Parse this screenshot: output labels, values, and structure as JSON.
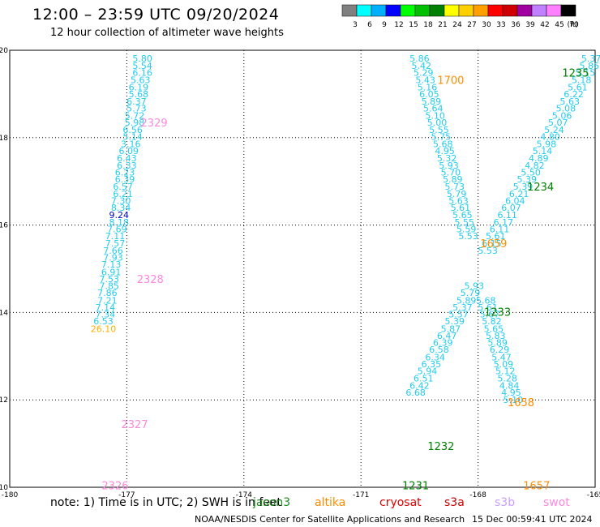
{
  "header": {
    "title": "12:00 – 23:59 UTC 09/20/2024",
    "subtitle": "12 hour collection of altimeter wave heights"
  },
  "footer": {
    "note": "note: 1) Time is in UTC; 2) SWH is in feet",
    "credit": "NOAA/NESDIS Center for Satellite Applications and Research",
    "timestamp": "15 Dec 00:59:41 UTC 2024"
  },
  "satellites": [
    {
      "name": "jason3",
      "color": "#1f8a1f"
    },
    {
      "name": "altika",
      "color": "#ff8c00"
    },
    {
      "name": "cryosat",
      "color": "#e00000"
    },
    {
      "name": "s3a",
      "color": "#cc0000"
    },
    {
      "name": "s3b",
      "color": "#c8a0ff"
    },
    {
      "name": "swot",
      "color": "#ff88dd"
    }
  ],
  "colorbar": {
    "unit": "(ft)",
    "ticks": [
      "3",
      "6",
      "9",
      "12",
      "15",
      "18",
      "21",
      "24",
      "27",
      "30",
      "33",
      "36",
      "39",
      "42",
      "45",
      "70"
    ],
    "colors": [
      "#808080",
      "#00ffff",
      "#00b0ff",
      "#0000ff",
      "#00ff00",
      "#00c000",
      "#008000",
      "#ffff00",
      "#ffd000",
      "#ffa000",
      "#ff0000",
      "#d00000",
      "#a000a0",
      "#c080ff",
      "#ff80ff",
      "#000000"
    ]
  },
  "chart_data": {
    "type": "scatter",
    "xlim": [
      -180,
      -165
    ],
    "ylim": [
      10,
      20
    ],
    "xticks": [
      "-180",
      "-177",
      "-174",
      "-171",
      "-168",
      "-165"
    ],
    "yticks": [
      "10",
      "12",
      "14",
      "16",
      "18",
      "20"
    ],
    "grid": true,
    "series": [
      {
        "color": "cyan",
        "x": [
          -176.6,
          -176.6,
          -176.6,
          -176.65,
          -176.7,
          -176.7,
          -176.75,
          -176.75,
          -176.8,
          -176.8,
          -176.85,
          -176.85,
          -176.9,
          -176.95,
          -177.0,
          -177.0,
          -177.05,
          -177.05,
          -177.1,
          -177.1,
          -177.15,
          -177.15,
          -177.2,
          -177.2,
          -177.25,
          -177.3,
          -177.3,
          -177.35,
          -177.35,
          -177.4,
          -177.4,
          -177.45,
          -177.45,
          -177.5,
          -177.5,
          -177.55,
          -177.55,
          -177.6,
          -177.6
        ],
        "y": [
          19.81,
          19.65,
          19.49,
          19.32,
          19.16,
          19.0,
          18.83,
          18.67,
          18.51,
          18.35,
          18.18,
          18.02,
          17.86,
          17.7,
          17.53,
          17.37,
          17.21,
          17.05,
          16.88,
          16.72,
          16.56,
          16.4,
          16.23,
          16.07,
          15.91,
          15.75,
          15.58,
          15.42,
          15.26,
          15.1,
          14.93,
          14.77,
          14.61,
          14.45,
          14.28,
          14.12,
          13.96,
          13.8,
          13.63
        ],
        "values": [
          "5.80",
          "5.54",
          "6.16",
          "5.63",
          "6.19",
          "5.68",
          "6.37",
          "5.73",
          "5.72",
          "5.98",
          "6.56",
          "5.14",
          "3.16",
          "6.09",
          "6.43",
          "6.33",
          "6.23",
          "6.39",
          "6.57",
          "6.21",
          "7.30",
          "8.34",
          "9.24",
          "8.18",
          "7.69",
          "7.11",
          "7.57",
          "7.66",
          "7.93",
          "7.13",
          "6.91",
          "7.53",
          "7.85",
          "7.86",
          "7.21",
          "7.14",
          "7.34",
          "6.53",
          "26.10"
        ]
      },
      {
        "color": "cyan",
        "x": [
          -169.5,
          -169.45,
          -169.4,
          -169.35,
          -169.3,
          -169.25,
          -169.2,
          -169.15,
          -169.1,
          -169.05,
          -169.0,
          -168.95,
          -168.9,
          -168.85,
          -168.8,
          -168.75,
          -168.7,
          -168.65,
          -168.6,
          -168.55,
          -168.5,
          -168.45,
          -168.4,
          -168.35,
          -168.3,
          -168.25
        ],
        "y": [
          19.81,
          19.65,
          19.49,
          19.32,
          19.16,
          19.0,
          18.83,
          18.67,
          18.51,
          18.35,
          18.18,
          18.02,
          17.86,
          17.7,
          17.53,
          17.37,
          17.21,
          17.05,
          16.88,
          16.72,
          16.56,
          16.4,
          16.23,
          16.07,
          15.91,
          15.75
        ],
        "values": [
          "5.86",
          "5.42",
          "5.29",
          "5.43",
          "5.16",
          "6.05",
          "5.89",
          "5.64",
          "5.10",
          "5.00",
          "5.55",
          "5.75",
          "5.68",
          "4.95",
          "5.32",
          "5.93",
          "5.70",
          "5.89",
          "5.73",
          "5.79",
          "5.63",
          "5.61",
          "5.65",
          "5.55",
          "5.59",
          "5.53"
        ]
      },
      {
        "color": "cyan",
        "x": [
          -165.1,
          -165.15,
          -165.25,
          -165.35,
          -165.45,
          -165.55,
          -165.65,
          -165.75,
          -165.85,
          -165.95,
          -166.05,
          -166.15,
          -166.25,
          -166.35,
          -166.45,
          -166.55,
          -166.65,
          -166.75,
          -166.85,
          -166.95,
          -167.05,
          -167.15,
          -167.25,
          -167.35,
          -167.45,
          -167.55,
          -167.65,
          -167.75
        ],
        "y": [
          19.81,
          19.65,
          19.49,
          19.32,
          19.16,
          19.0,
          18.83,
          18.67,
          18.51,
          18.35,
          18.18,
          18.02,
          17.86,
          17.7,
          17.53,
          17.37,
          17.21,
          17.05,
          16.88,
          16.72,
          16.56,
          16.4,
          16.23,
          16.07,
          15.91,
          15.75,
          15.58,
          15.42
        ],
        "values": [
          "5.37",
          "5.86",
          "5.15",
          "5.18",
          "5.61",
          "6.22",
          "5.63",
          "5.08",
          "5.06",
          "5.07",
          "5.24",
          "4.80",
          "5.98",
          "5.14",
          "4.89",
          "4.82",
          "5.50",
          "5.39",
          "5.39",
          "6.21",
          "6.04",
          "6.07",
          "6.11",
          "6.17",
          "6.11",
          "5.61",
          "6.15",
          "5.53"
        ]
      },
      {
        "color": "cyan",
        "x": [
          -168.1,
          -168.2,
          -168.3,
          -168.4,
          -168.5,
          -168.6,
          -168.7,
          -168.8,
          -168.9,
          -169.0,
          -169.1,
          -169.2,
          -169.3,
          -169.4,
          -169.5,
          -169.6
        ],
        "y": [
          14.61,
          14.45,
          14.28,
          14.12,
          13.96,
          13.8,
          13.63,
          13.47,
          13.31,
          13.15,
          12.98,
          12.82,
          12.66,
          12.5,
          12.33,
          12.17
        ],
        "values": [
          "5.93",
          "5.79",
          "5.89",
          "5.37",
          "5.57",
          "5.39",
          "5.87",
          "6.47",
          "6.39",
          "6.58",
          "6.34",
          "6.35",
          "5.94",
          "6.51",
          "6.42",
          "6.68"
        ]
      },
      {
        "color": "cyan",
        "x": [
          -167.8,
          -167.75,
          -167.7,
          -167.65,
          -167.6,
          -167.55,
          -167.5,
          -167.45,
          -167.4,
          -167.35,
          -167.3,
          -167.25,
          -167.2,
          -167.15,
          -167.1
        ],
        "y": [
          14.28,
          14.12,
          13.96,
          13.8,
          13.63,
          13.47,
          13.31,
          13.15,
          12.98,
          12.82,
          12.66,
          12.5,
          12.33,
          12.17,
          12.0
        ],
        "values": [
          "5.68",
          "5.61",
          "5.67",
          "5.82",
          "5.65",
          "5.83",
          "5.89",
          "6.29",
          "5.47",
          "5.09",
          "5.12",
          "5.28",
          "4.84",
          "4.95",
          "5.10"
        ]
      }
    ],
    "annotations": [
      {
        "x": -176.3,
        "y": 18.35,
        "text": "2329",
        "color": "#ff88dd"
      },
      {
        "x": -176.4,
        "y": 14.77,
        "text": "2328",
        "color": "#ff88dd"
      },
      {
        "x": -176.8,
        "y": 11.45,
        "text": "2327",
        "color": "#ff88dd"
      },
      {
        "x": -177.3,
        "y": 10.05,
        "text": "2326",
        "color": "#ff88dd"
      },
      {
        "x": -168.7,
        "y": 19.32,
        "text": "1700",
        "color": "#ff8c00"
      },
      {
        "x": -167.6,
        "y": 15.58,
        "text": "1659",
        "color": "#ff8c00"
      },
      {
        "x": -166.9,
        "y": 11.95,
        "text": "1658",
        "color": "#ff8c00"
      },
      {
        "x": -166.5,
        "y": 10.05,
        "text": "1657",
        "color": "#ff8c00"
      },
      {
        "x": -165.5,
        "y": 19.49,
        "text": "1235",
        "color": "#008000"
      },
      {
        "x": -166.4,
        "y": 16.88,
        "text": "1234",
        "color": "#008000"
      },
      {
        "x": -167.5,
        "y": 14.02,
        "text": "1233",
        "color": "#008000"
      },
      {
        "x": -168.95,
        "y": 10.95,
        "text": "1232",
        "color": "#008000"
      },
      {
        "x": -169.6,
        "y": 10.05,
        "text": "1231",
        "color": "#008000"
      }
    ]
  }
}
